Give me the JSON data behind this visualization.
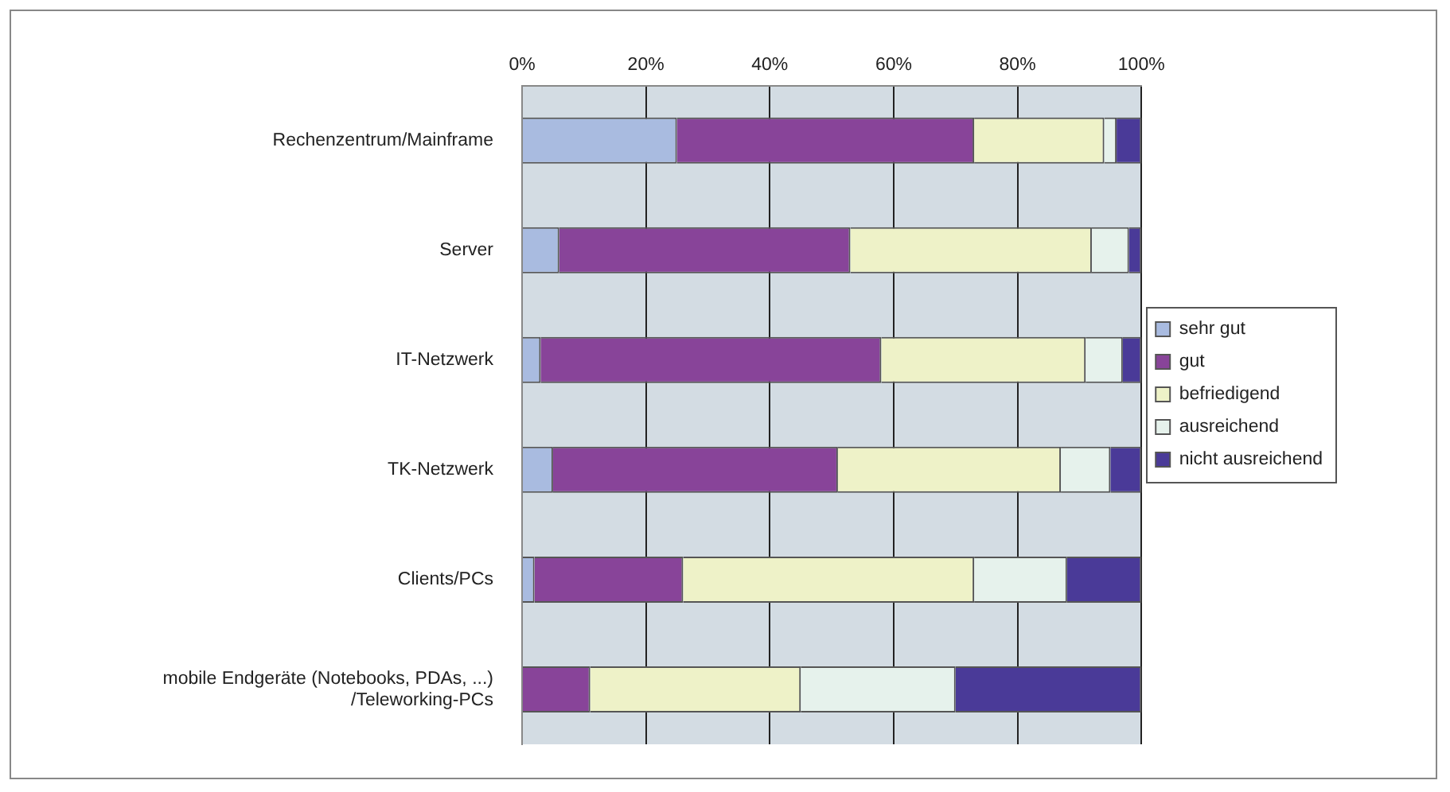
{
  "chart_data": {
    "type": "bar",
    "orientation": "horizontal",
    "stacked": true,
    "categories": [
      "Rechenzentrum/Mainframe",
      "Server",
      "IT-Netzwerk",
      "TK-Netzwerk",
      "Clients/PCs",
      "mobile Endgeräte (Notebooks, PDAs, ...)\n/Teleworking-PCs"
    ],
    "series": [
      {
        "name": "sehr gut",
        "color": "#a9bbe0",
        "values": [
          25,
          6,
          3,
          5,
          2,
          0
        ]
      },
      {
        "name": "gut",
        "color": "#884499",
        "values": [
          48,
          47,
          55,
          46,
          24,
          11
        ]
      },
      {
        "name": "befriedigend",
        "color": "#eef2c8",
        "values": [
          21,
          39,
          33,
          36,
          47,
          34
        ]
      },
      {
        "name": "ausreichend",
        "color": "#e6f2ec",
        "values": [
          2,
          6,
          6,
          8,
          15,
          25
        ]
      },
      {
        "name": "nicht ausreichend",
        "color": "#4a3a98",
        "values": [
          4,
          2,
          3,
          5,
          12,
          30
        ]
      }
    ],
    "xlim": [
      0,
      100
    ],
    "xticks": [
      {
        "value": 0,
        "label": "0%"
      },
      {
        "value": 20,
        "label": "20%"
      },
      {
        "value": 40,
        "label": "40%"
      },
      {
        "value": 60,
        "label": "60%"
      },
      {
        "value": 80,
        "label": "80%"
      },
      {
        "value": 100,
        "label": "100%"
      }
    ],
    "grid": "x",
    "legend": "right"
  }
}
